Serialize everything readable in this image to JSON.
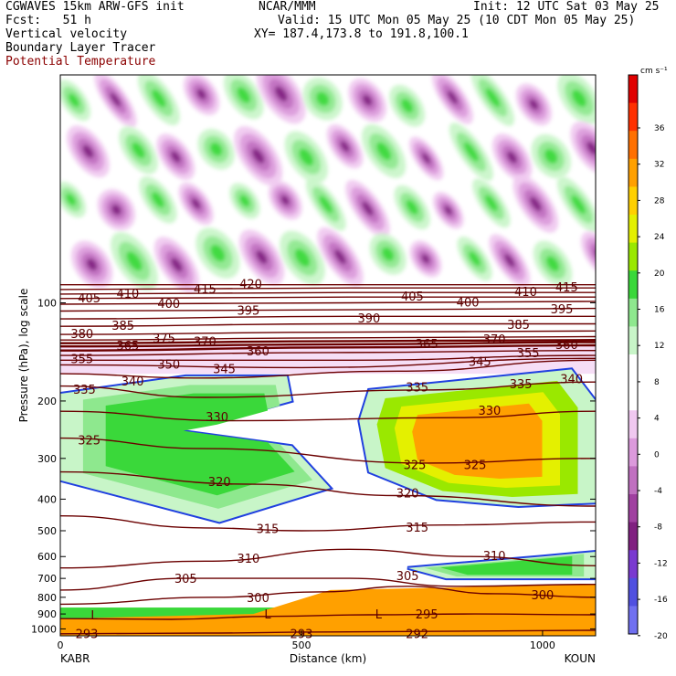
{
  "header": {
    "model": "CGWAVES 15km ARW-GFS init",
    "fcst": "Fcst:   51 h",
    "org": "NCAR/MMM",
    "init": "Init: 12 UTC Sat 03 May 25",
    "valid": "Valid: 15 UTC Mon 05 May 25 (10 CDT Mon 05 May 25)",
    "xy": "XY= 187.4,173.8 to 191.8,100.1",
    "fields": [
      "Vertical velocity",
      "Boundary Layer Tracer",
      "Potential Temperature"
    ]
  },
  "colors": {
    "theta": "#6b0000",
    "positive": [
      "#c8f5c8",
      "#8ee88e",
      "#3ad83a",
      "#9ae800",
      "#e4f000",
      "#ffd000",
      "#ffa000",
      "#ff7000",
      "#ff3000",
      "#e00000"
    ],
    "negative": [
      "#f0c8f0",
      "#dc9adc",
      "#c070c0",
      "#a040a0",
      "#802080",
      "#7a3ad0",
      "#5050e0",
      "#7070f0"
    ],
    "tracer_edge": "#2040e0"
  },
  "chart_data": {
    "type": "cross-section",
    "title": "",
    "xlabel": "Distance (km)",
    "ylabel": "Pressure (hPa), log scale",
    "xlim": [
      0,
      1110
    ],
    "ylim": [
      1050,
      20
    ],
    "x_ticks": [
      0,
      500,
      1000
    ],
    "y_ticks": [
      100,
      200,
      300,
      400,
      500,
      600,
      700,
      800,
      900,
      1000
    ],
    "endpoints": {
      "left": "KABR",
      "right": "KOUN"
    },
    "colorbar": {
      "units": "cm s⁻¹",
      "ticks": [
        "36",
        "32",
        "28",
        "24",
        "20",
        "16",
        "12",
        "8",
        "4",
        "0",
        "-4",
        "-8",
        "-12",
        "-16",
        "-20"
      ]
    },
    "low_markers": [
      {
        "label": "L",
        "x": 70,
        "p": 905
      },
      {
        "label": "L",
        "x": 430,
        "p": 900
      },
      {
        "label": "L",
        "x": 660,
        "p": 900
      }
    ],
    "theta_lines": [
      {
        "theta": 293,
        "points": [
          [
            0,
            1035
          ],
          [
            300,
            1030
          ],
          [
            560,
            1022
          ],
          [
            1110,
            1010
          ]
        ]
      },
      {
        "theta": 295,
        "points": [
          [
            0,
            930
          ],
          [
            230,
            935
          ],
          [
            440,
            915
          ],
          [
            640,
            905
          ],
          [
            860,
            900
          ],
          [
            1110,
            905
          ]
        ]
      },
      {
        "theta": 300,
        "points": [
          [
            0,
            840
          ],
          [
            320,
            800
          ],
          [
            540,
            770
          ],
          [
            720,
            740
          ],
          [
            900,
            780
          ],
          [
            1110,
            800
          ]
        ]
      },
      {
        "theta": 305,
        "points": [
          [
            0,
            760
          ],
          [
            260,
            700
          ],
          [
            600,
            700
          ],
          [
            820,
            740
          ],
          [
            1110,
            730
          ]
        ]
      },
      {
        "theta": 310,
        "points": [
          [
            0,
            650
          ],
          [
            300,
            620
          ],
          [
            600,
            570
          ],
          [
            850,
            600
          ],
          [
            1110,
            640
          ]
        ]
      },
      {
        "theta": 315,
        "points": [
          [
            0,
            450
          ],
          [
            300,
            490
          ],
          [
            500,
            500
          ],
          [
            800,
            480
          ],
          [
            1110,
            470
          ]
        ]
      },
      {
        "theta": 320,
        "points": [
          [
            0,
            330
          ],
          [
            400,
            360
          ],
          [
            700,
            390
          ],
          [
            1110,
            420
          ]
        ]
      },
      {
        "theta": 325,
        "points": [
          [
            0,
            260
          ],
          [
            300,
            280
          ],
          [
            760,
            310
          ],
          [
            1110,
            300
          ]
        ]
      },
      {
        "theta": 330,
        "points": [
          [
            0,
            215
          ],
          [
            350,
            230
          ],
          [
            820,
            225
          ],
          [
            1110,
            215
          ]
        ]
      },
      {
        "theta": 335,
        "points": [
          [
            0,
            180
          ],
          [
            300,
            195
          ],
          [
            750,
            185
          ],
          [
            1110,
            175
          ]
        ]
      },
      {
        "theta": 340,
        "points": [
          [
            0,
            165
          ],
          [
            280,
            170
          ],
          [
            700,
            162
          ],
          [
            1110,
            150
          ]
        ]
      },
      {
        "theta": 345,
        "points": [
          [
            0,
            155
          ],
          [
            500,
            158
          ],
          [
            1110,
            148
          ]
        ]
      },
      {
        "theta": 350,
        "points": [
          [
            0,
            150
          ],
          [
            600,
            150
          ],
          [
            1110,
            145
          ]
        ]
      },
      {
        "theta": 355,
        "points": [
          [
            0,
            145
          ],
          [
            560,
            142
          ],
          [
            1110,
            140
          ]
        ]
      },
      {
        "theta": 360,
        "points": [
          [
            0,
            140
          ],
          [
            600,
            137
          ],
          [
            1110,
            135
          ]
        ]
      },
      {
        "theta": 365,
        "points": [
          [
            0,
            136
          ],
          [
            600,
            134
          ],
          [
            1110,
            132
          ]
        ]
      },
      {
        "theta": 370,
        "points": [
          [
            0,
            133
          ],
          [
            600,
            131
          ],
          [
            1110,
            130
          ]
        ]
      },
      {
        "theta": 375,
        "points": [
          [
            0,
            130
          ],
          [
            600,
            128
          ],
          [
            1110,
            127
          ]
        ]
      },
      {
        "theta": 380,
        "points": [
          [
            0,
            125
          ],
          [
            600,
            123
          ],
          [
            1110,
            122
          ]
        ]
      },
      {
        "theta": 385,
        "points": [
          [
            0,
            118
          ],
          [
            600,
            116
          ],
          [
            1110,
            116
          ]
        ]
      },
      {
        "theta": 390,
        "points": [
          [
            0,
            112
          ],
          [
            600,
            110
          ],
          [
            1110,
            110
          ]
        ]
      },
      {
        "theta": 395,
        "points": [
          [
            0,
            106
          ],
          [
            600,
            105
          ],
          [
            1110,
            104
          ]
        ]
      },
      {
        "theta": 400,
        "points": [
          [
            0,
            101
          ],
          [
            600,
            100
          ],
          [
            1110,
            99
          ]
        ]
      },
      {
        "theta": 405,
        "points": [
          [
            0,
            97
          ],
          [
            600,
            96
          ],
          [
            1110,
            96
          ]
        ]
      },
      {
        "theta": 410,
        "points": [
          [
            0,
            94
          ],
          [
            600,
            93
          ],
          [
            1110,
            93
          ]
        ]
      },
      {
        "theta": 415,
        "points": [
          [
            0,
            91
          ],
          [
            600,
            90
          ],
          [
            1110,
            90
          ]
        ]
      },
      {
        "theta": 420,
        "points": [
          [
            0,
            88
          ],
          [
            600,
            88
          ],
          [
            1110,
            88
          ]
        ]
      }
    ],
    "theta_labels": [
      {
        "text": "293",
        "x": 55,
        "p": 1040
      },
      {
        "text": "293",
        "x": 500,
        "p": 1040
      },
      {
        "text": "292",
        "x": 740,
        "p": 1040
      },
      {
        "text": "295",
        "x": 760,
        "p": 905
      },
      {
        "text": "300",
        "x": 410,
        "p": 805
      },
      {
        "text": "300",
        "x": 1000,
        "p": 790
      },
      {
        "text": "305",
        "x": 260,
        "p": 705
      },
      {
        "text": "305",
        "x": 720,
        "p": 690
      },
      {
        "text": "310",
        "x": 390,
        "p": 610
      },
      {
        "text": "310",
        "x": 900,
        "p": 600
      },
      {
        "text": "315",
        "x": 430,
        "p": 495
      },
      {
        "text": "315",
        "x": 740,
        "p": 490
      },
      {
        "text": "320",
        "x": 330,
        "p": 355
      },
      {
        "text": "320",
        "x": 720,
        "p": 385
      },
      {
        "text": "325",
        "x": 60,
        "p": 265
      },
      {
        "text": "325",
        "x": 735,
        "p": 315
      },
      {
        "text": "325",
        "x": 860,
        "p": 315
      },
      {
        "text": "330",
        "x": 325,
        "p": 225
      },
      {
        "text": "330",
        "x": 890,
        "p": 215
      },
      {
        "text": "335",
        "x": 50,
        "p": 185
      },
      {
        "text": "335",
        "x": 740,
        "p": 182
      },
      {
        "text": "335",
        "x": 955,
        "p": 178
      },
      {
        "text": "340",
        "x": 150,
        "p": 175
      },
      {
        "text": "340",
        "x": 1060,
        "p": 172
      },
      {
        "text": "345",
        "x": 340,
        "p": 160
      },
      {
        "text": "345",
        "x": 870,
        "p": 152
      },
      {
        "text": "350",
        "x": 225,
        "p": 155
      },
      {
        "text": "355",
        "x": 45,
        "p": 149
      },
      {
        "text": "355",
        "x": 970,
        "p": 143
      },
      {
        "text": "360",
        "x": 410,
        "p": 141
      },
      {
        "text": "360",
        "x": 1050,
        "p": 135
      },
      {
        "text": "365",
        "x": 140,
        "p": 136
      },
      {
        "text": "365",
        "x": 760,
        "p": 134
      },
      {
        "text": "370",
        "x": 300,
        "p": 132
      },
      {
        "text": "370",
        "x": 900,
        "p": 130
      },
      {
        "text": "375",
        "x": 215,
        "p": 129
      },
      {
        "text": "380",
        "x": 45,
        "p": 125
      },
      {
        "text": "385",
        "x": 130,
        "p": 118
      },
      {
        "text": "385",
        "x": 950,
        "p": 117
      },
      {
        "text": "390",
        "x": 640,
        "p": 112
      },
      {
        "text": "395",
        "x": 390,
        "p": 106
      },
      {
        "text": "395",
        "x": 1040,
        "p": 105
      },
      {
        "text": "400",
        "x": 225,
        "p": 101
      },
      {
        "text": "400",
        "x": 845,
        "p": 100
      },
      {
        "text": "405",
        "x": 60,
        "p": 97
      },
      {
        "text": "405",
        "x": 730,
        "p": 96
      },
      {
        "text": "410",
        "x": 140,
        "p": 94
      },
      {
        "text": "410",
        "x": 965,
        "p": 93
      },
      {
        "text": "415",
        "x": 300,
        "p": 91
      },
      {
        "text": "415",
        "x": 1050,
        "p": 90
      },
      {
        "text": "420",
        "x": 395,
        "p": 88
      }
    ]
  }
}
